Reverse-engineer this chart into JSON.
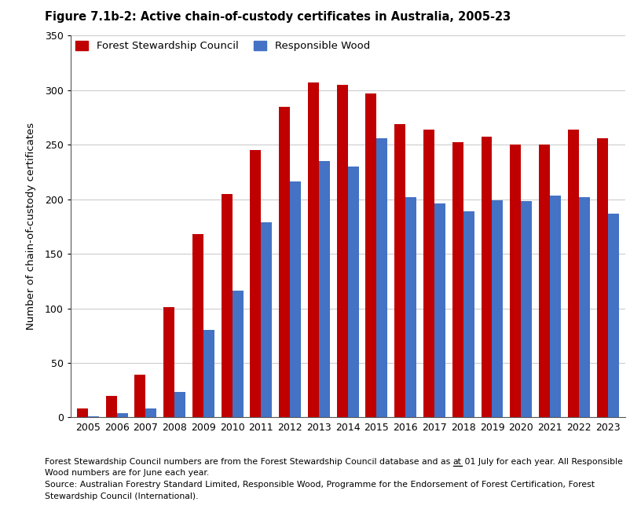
{
  "title": "Figure 7.1b-2: Active chain-of-custody certificates in Australia, 2005-23",
  "ylabel": "Number of chain-of-custody certificates",
  "years": [
    2005,
    2006,
    2007,
    2008,
    2009,
    2010,
    2011,
    2012,
    2013,
    2014,
    2015,
    2016,
    2017,
    2018,
    2019,
    2020,
    2021,
    2022,
    2023
  ],
  "fsc_values": [
    8,
    20,
    39,
    101,
    168,
    205,
    245,
    285,
    307,
    305,
    297,
    269,
    264,
    252,
    257,
    250,
    250,
    264,
    256
  ],
  "rw_values": [
    1,
    4,
    8,
    23,
    80,
    116,
    179,
    216,
    235,
    230,
    256,
    202,
    196,
    189,
    199,
    198,
    203,
    202,
    187
  ],
  "fsc_color": "#C00000",
  "rw_color": "#4472C4",
  "ylim": [
    0,
    350
  ],
  "yticks": [
    0,
    50,
    100,
    150,
    200,
    250,
    300,
    350
  ],
  "bar_width": 0.38,
  "legend_fsc": "Forest Stewardship Council",
  "legend_rw": "Responsible Wood",
  "footnote_lines": [
    "Forest Stewardship Council numbers are from the Forest Stewardship Council database and as at 01 July for each year. All Responsible",
    "Wood numbers are for June each year.",
    "Source: Australian Forestry Standard Limited, Responsible Wood, Programme for the Endorsement of Forest Certification, Forest",
    "Stewardship Council (International)."
  ],
  "fn_before_at": "Forest Stewardship Council numbers are from the Forest Stewardship Council database and as ",
  "fn_after_at": " 01 July for each year. All Responsible",
  "grid_color": "#CCCCCC"
}
